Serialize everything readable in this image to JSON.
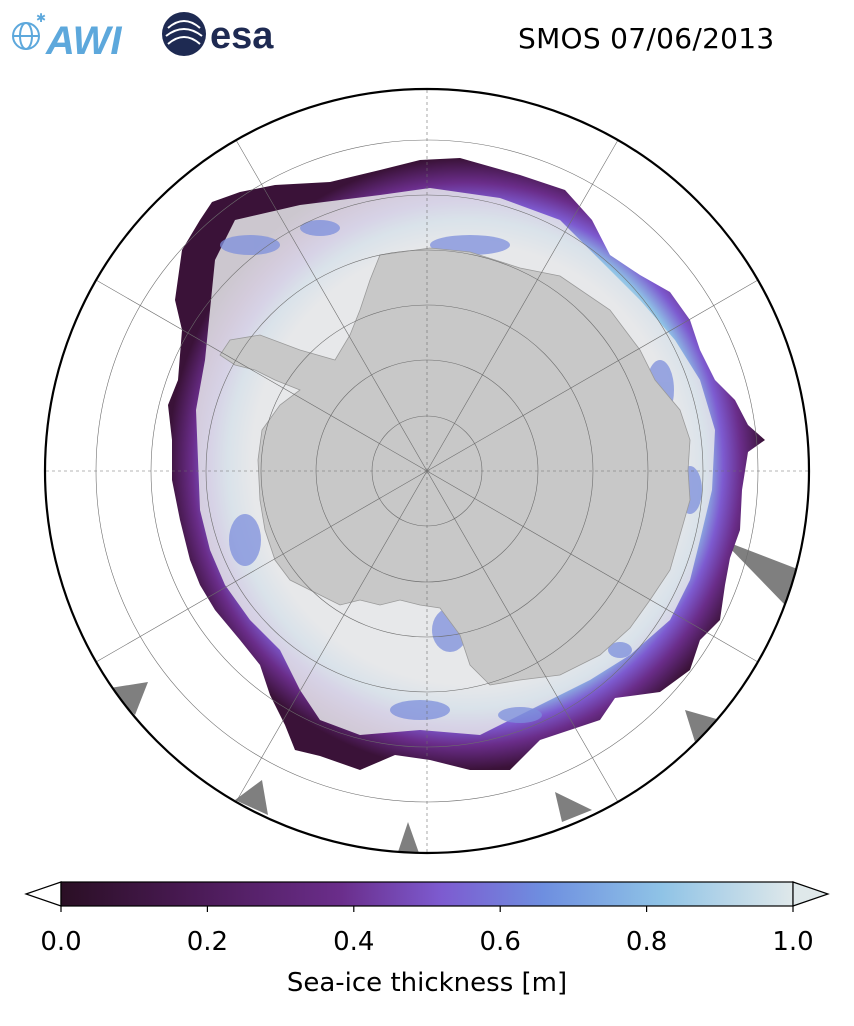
{
  "header": {
    "title": "SMOS 07/06/2013",
    "logo_awi_text": "AWI",
    "logo_esa_text": "esa"
  },
  "map": {
    "projection": "south polar stereographic",
    "land_color": "#c8c8c8",
    "ice_color": "#e8e8ea",
    "edge_color": "#4a1a55",
    "missing_color": "#7f7f7f",
    "grid": "on"
  },
  "colorbar": {
    "label": "Sea-ice thickness [m]",
    "min": 0.0,
    "max": 1.0,
    "extend": "both",
    "ticks": [
      "0.0",
      "0.2",
      "0.4",
      "0.6",
      "0.8",
      "1.0"
    ],
    "colors": [
      "#2a0f24",
      "#4a1a55",
      "#6a2d8a",
      "#7d5bd0",
      "#6e8fe0",
      "#8fc3e6",
      "#dfe8ea"
    ]
  }
}
